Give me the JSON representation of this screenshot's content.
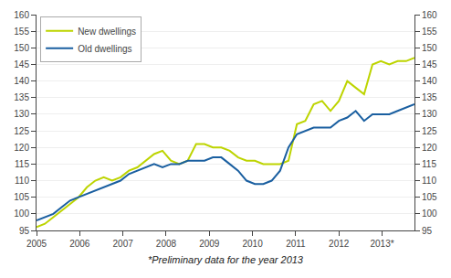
{
  "chart_data": {
    "type": "line",
    "x": [
      2005,
      2005.1944,
      2005.3889,
      2005.5833,
      2005.7778,
      2005.9722,
      2006.1667,
      2006.3611,
      2006.5556,
      2006.75,
      2006.9444,
      2007.1389,
      2007.3333,
      2007.5278,
      2007.7222,
      2007.9167,
      2008.1111,
      2008.3056,
      2008.5,
      2008.6944,
      2008.8889,
      2009.0833,
      2009.2778,
      2009.4722,
      2009.6667,
      2009.8611,
      2010.0556,
      2010.25,
      2010.4444,
      2010.6389,
      2010.8333,
      2011.0278,
      2011.2222,
      2011.4167,
      2011.6111,
      2011.8056,
      2012,
      2012.1944,
      2012.3889,
      2012.5833,
      2012.7778,
      2012.9722,
      2013.1667,
      2013.3611,
      2013.5556,
      2013.75
    ],
    "series": [
      {
        "name": "New dwellings",
        "color": "#bdd400",
        "values": [
          96,
          97,
          99,
          101,
          103,
          105,
          108,
          110,
          111,
          110,
          111,
          113,
          114,
          116,
          118,
          119,
          116,
          115,
          116,
          121,
          121,
          120,
          120,
          119,
          117,
          116,
          116,
          115,
          115,
          115,
          116,
          127,
          128,
          133,
          134,
          131,
          134,
          140,
          138,
          136,
          145,
          146,
          145,
          146,
          146,
          147
        ]
      },
      {
        "name": "Old dwellings",
        "color": "#1a5fa0",
        "values": [
          98,
          99,
          100,
          102,
          104,
          105,
          106,
          107,
          108,
          109,
          110,
          112,
          113,
          114,
          115,
          114,
          115,
          115,
          116,
          116,
          116,
          117,
          117,
          115,
          113,
          110,
          109,
          109,
          110,
          113,
          120,
          124,
          125,
          126,
          126,
          126,
          128,
          129,
          131,
          128,
          130,
          130,
          130,
          131,
          132,
          133
        ]
      }
    ],
    "xlim": [
      2005.0,
      2013.75
    ],
    "xticks": [
      2005,
      2006,
      2007,
      2008,
      2009,
      2010,
      2011,
      2012,
      {
        "value": 2013,
        "label": "2013*"
      }
    ],
    "ylim": [
      95,
      160
    ],
    "yticks": [
      95,
      100,
      105,
      110,
      115,
      120,
      125,
      130,
      135,
      140,
      145,
      150,
      155,
      160
    ],
    "y2lim": [
      95,
      160
    ],
    "y2ticks": [
      95,
      100,
      105,
      110,
      115,
      120,
      125,
      130,
      135,
      140,
      145,
      150,
      155,
      160
    ],
    "annotations": [
      "*Preliminary data for the year 2013"
    ],
    "grid": true,
    "legend": "upper left"
  }
}
